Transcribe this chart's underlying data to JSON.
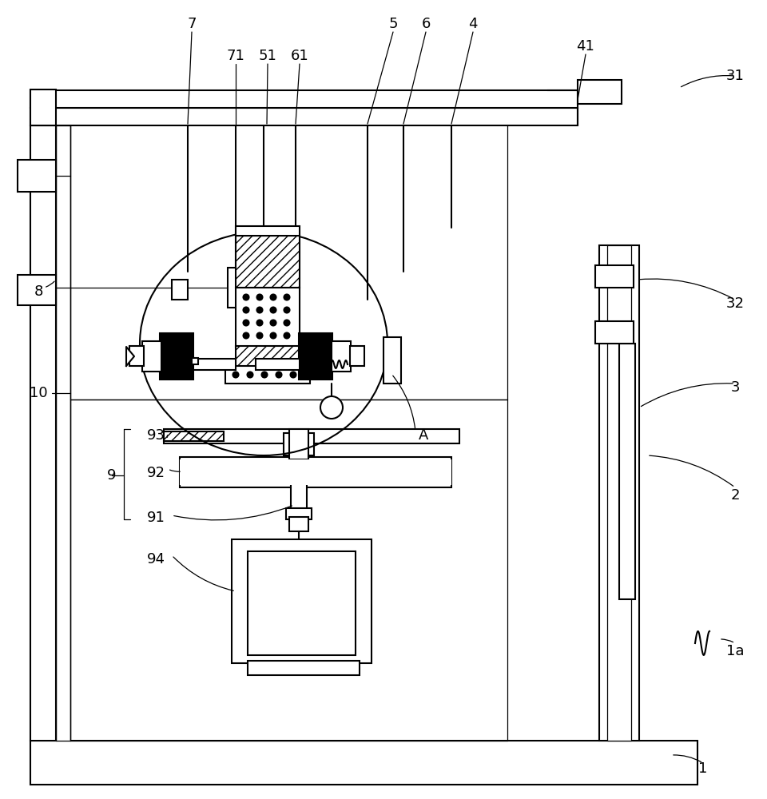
{
  "bg_color": "#ffffff",
  "lc": "#000000",
  "lw": 1.5,
  "tlw": 0.9,
  "fig_w": 9.6,
  "fig_h": 10.0
}
